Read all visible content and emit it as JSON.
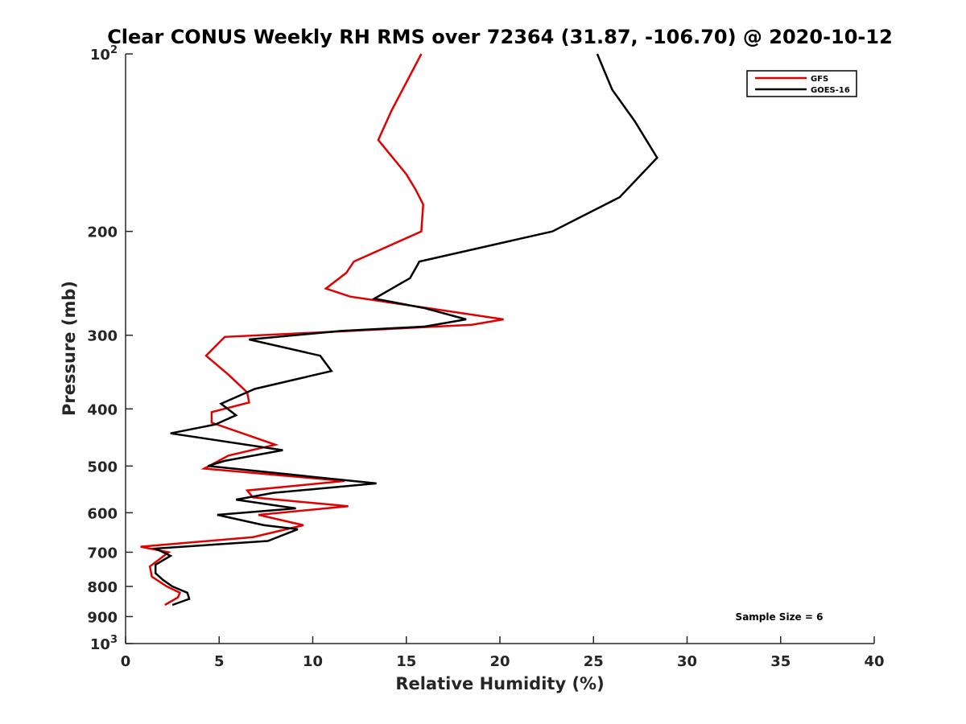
{
  "chart_data": {
    "type": "line",
    "title": "Clear CONUS Weekly RH RMS over 72364 (31.87, -106.70) @ 2020-10-12",
    "xlabel": "Relative Humidity (%)",
    "ylabel": "Pressure (mb)",
    "xlim": [
      0,
      40
    ],
    "ylim": [
      100,
      1000
    ],
    "y_scale": "log",
    "y_reversed": true,
    "grid": false,
    "legend_position": "top-right",
    "x_ticks": [
      "0",
      "5",
      "10",
      "15",
      "20",
      "25",
      "30",
      "35",
      "40"
    ],
    "x_tick_values": [
      0,
      5,
      10,
      15,
      20,
      25,
      30,
      35,
      40
    ],
    "y_ticks": [
      {
        "value": 100,
        "base": "10",
        "exp": "2"
      },
      {
        "value": 200,
        "label": "200"
      },
      {
        "value": 300,
        "label": "300"
      },
      {
        "value": 400,
        "label": "400"
      },
      {
        "value": 500,
        "label": "500"
      },
      {
        "value": 600,
        "label": "600"
      },
      {
        "value": 700,
        "label": "700"
      },
      {
        "value": 800,
        "label": "800"
      },
      {
        "value": 900,
        "label": "900"
      },
      {
        "value": 1000,
        "base": "10",
        "exp": "3"
      }
    ],
    "series": [
      {
        "name": "GFS",
        "color": "#e00000",
        "points": [
          [
            15.8,
            100
          ],
          [
            14.2,
            125
          ],
          [
            13.5,
            140
          ],
          [
            15.0,
            160
          ],
          [
            15.5,
            170
          ],
          [
            15.9,
            180
          ],
          [
            15.8,
            200
          ],
          [
            12.2,
            225
          ],
          [
            11.8,
            235
          ],
          [
            10.7,
            250
          ],
          [
            12.0,
            258
          ],
          [
            20.2,
            282
          ],
          [
            18.5,
            288
          ],
          [
            12.0,
            295
          ],
          [
            5.3,
            302
          ],
          [
            4.3,
            325
          ],
          [
            5.5,
            350
          ],
          [
            6.5,
            375
          ],
          [
            6.6,
            390
          ],
          [
            4.6,
            405
          ],
          [
            4.6,
            422
          ],
          [
            8.0,
            460
          ],
          [
            5.5,
            480
          ],
          [
            4.2,
            505
          ],
          [
            11.7,
            530
          ],
          [
            6.5,
            550
          ],
          [
            6.8,
            565
          ],
          [
            11.9,
            585
          ],
          [
            7.1,
            605
          ],
          [
            9.5,
            630
          ],
          [
            6.8,
            660
          ],
          [
            0.8,
            685
          ],
          [
            2.3,
            700
          ],
          [
            1.3,
            740
          ],
          [
            1.4,
            770
          ],
          [
            2.2,
            800
          ],
          [
            2.9,
            820
          ],
          [
            2.8,
            835
          ],
          [
            2.1,
            860
          ]
        ]
      },
      {
        "name": "GOES-16",
        "color": "#000000",
        "points": [
          [
            25.2,
            100
          ],
          [
            26.0,
            115
          ],
          [
            27.2,
            130
          ],
          [
            28.4,
            150
          ],
          [
            26.4,
            175
          ],
          [
            22.8,
            200
          ],
          [
            15.7,
            225
          ],
          [
            15.2,
            240
          ],
          [
            13.3,
            260
          ],
          [
            16.0,
            270
          ],
          [
            18.2,
            282
          ],
          [
            16.0,
            290
          ],
          [
            11.5,
            295
          ],
          [
            6.6,
            305
          ],
          [
            10.4,
            325
          ],
          [
            11.0,
            345
          ],
          [
            6.9,
            370
          ],
          [
            5.1,
            392
          ],
          [
            5.9,
            410
          ],
          [
            4.8,
            425
          ],
          [
            2.4,
            440
          ],
          [
            8.4,
            470
          ],
          [
            5.3,
            490
          ],
          [
            4.4,
            500
          ],
          [
            13.4,
            535
          ],
          [
            7.9,
            555
          ],
          [
            5.9,
            570
          ],
          [
            9.1,
            590
          ],
          [
            4.9,
            605
          ],
          [
            7.4,
            630
          ],
          [
            9.2,
            640
          ],
          [
            7.6,
            670
          ],
          [
            1.6,
            690
          ],
          [
            2.4,
            710
          ],
          [
            1.6,
            735
          ],
          [
            1.6,
            760
          ],
          [
            2.0,
            780
          ],
          [
            2.5,
            800
          ],
          [
            3.3,
            820
          ],
          [
            3.4,
            840
          ],
          [
            2.5,
            860
          ]
        ]
      }
    ],
    "annotation": "Sample Size = 6"
  }
}
